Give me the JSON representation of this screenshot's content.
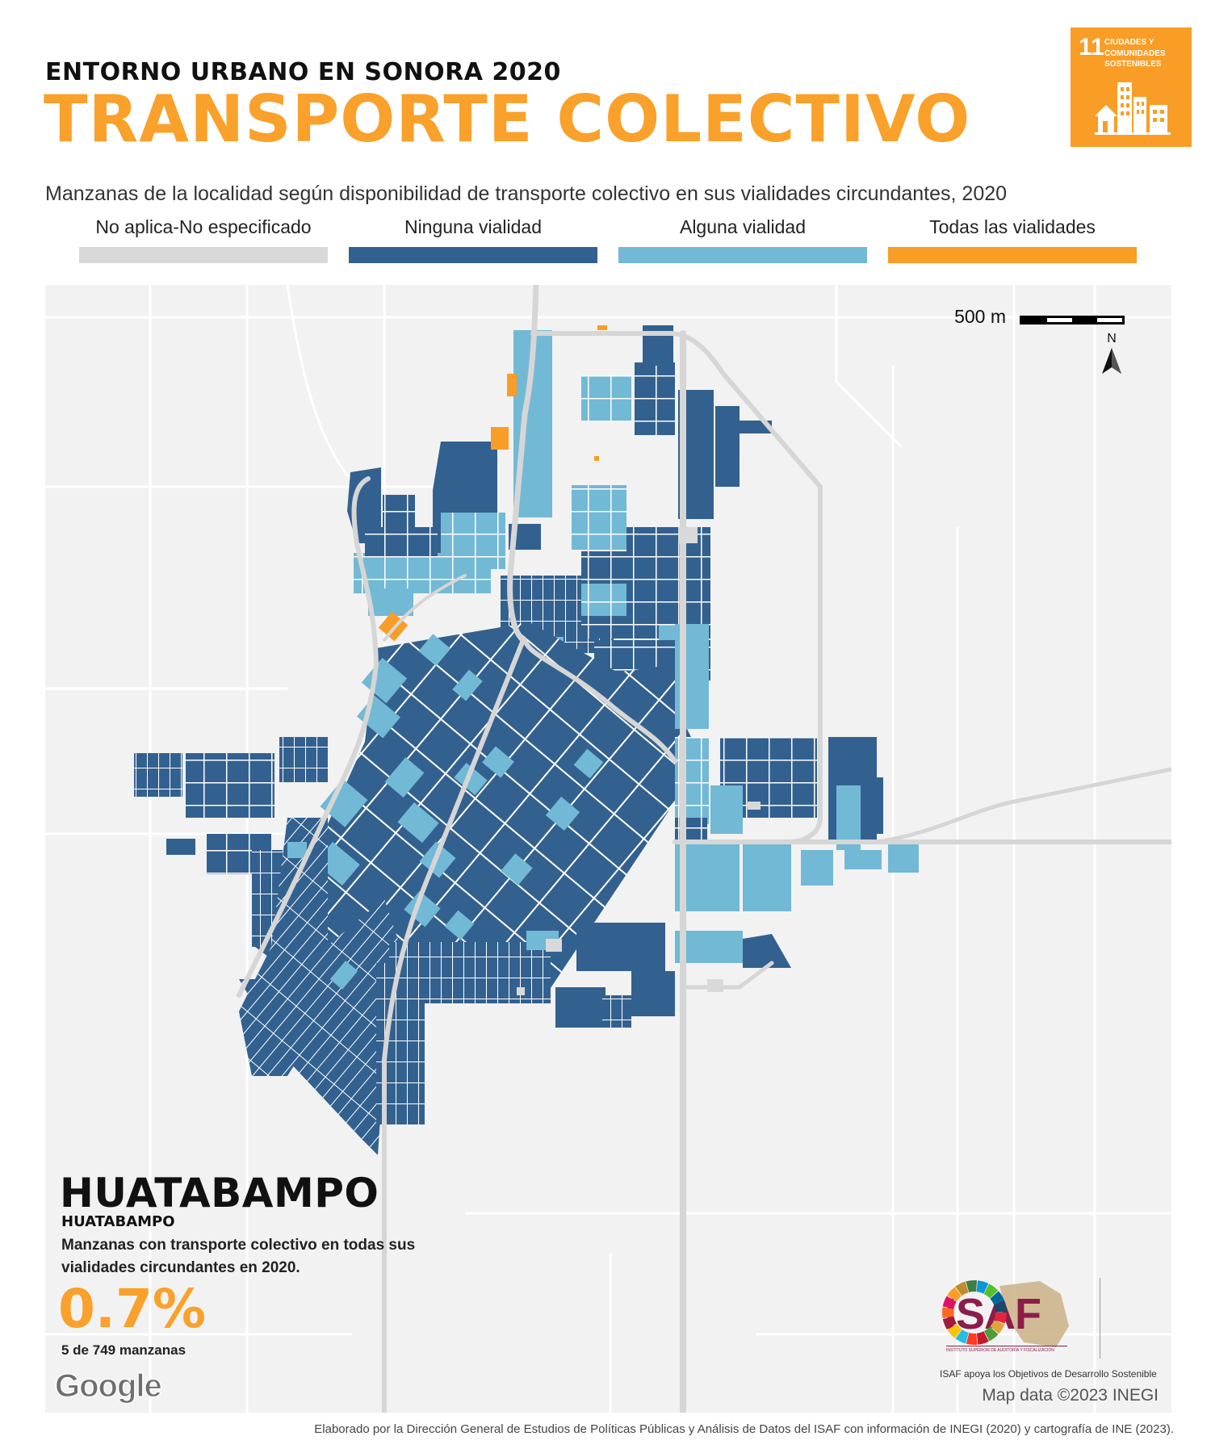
{
  "header": {
    "kicker": "ENTORNO URBANO EN SONORA 2020",
    "title": "TRANSPORTE COLECTIVO",
    "subtitle": "Manzanas de la localidad según disponibilidad de  transporte colectivo en sus vialidades circundantes, 2020"
  },
  "sdg_badge": {
    "number": "11",
    "text": "CIUDADES Y COMUNIDADES SOSTENIBLES",
    "color": "#f99d26"
  },
  "legend": [
    {
      "label": "No aplica-No especificado",
      "color": "#d9d9d9"
    },
    {
      "label": "Ninguna vialidad",
      "color": "#33618f"
    },
    {
      "label": "Alguna vialidad",
      "color": "#72b9d5"
    },
    {
      "label": "Todas las vialidades",
      "color": "#f99d26"
    }
  ],
  "map": {
    "scale_label": "500 m",
    "north_label": "N",
    "attribution": "Map data ©2023 INEGI",
    "google_label": "Google"
  },
  "locality": {
    "name": "HUATABAMPO",
    "municipality": "HUATABAMPO",
    "description": "Manzanas con transporte colectivo en todas sus vialidades circundantes en 2020.",
    "percentage": "0.7%",
    "count_text": "5 de 749 manzanas"
  },
  "logos": {
    "isaf": "ISAF",
    "isaf_tiny": "INSTITUTO SUPERIOR DE AUDITORÍA Y FISCALIZACIÓN",
    "caption": "ISAF apoya los Objetivos de Desarrollo Sostenible"
  },
  "footer": "Elaborado por la Dirección General de Estudios de Políticas Públicas y Análisis de Datos del ISAF con información de INEGI (2020) y cartografía de INE (2023)."
}
